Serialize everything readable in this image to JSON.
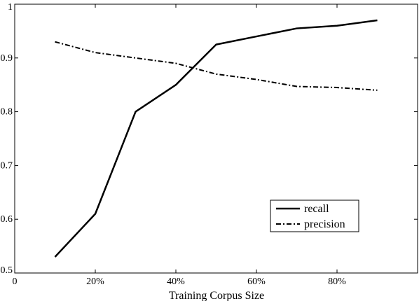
{
  "chart_data": {
    "type": "line",
    "title": "",
    "xlabel": "Training Corpus Size",
    "ylabel": "",
    "x": [
      10,
      20,
      30,
      40,
      50,
      60,
      70,
      80,
      90
    ],
    "xlim": [
      0,
      100
    ],
    "ylim": [
      0.5,
      1.0
    ],
    "x_ticks": [
      0,
      20,
      40,
      60,
      80
    ],
    "x_tick_labels": [
      "0",
      "20%",
      "40%",
      "60%",
      "80%"
    ],
    "y_ticks": [
      0.5,
      0.6,
      0.7,
      0.8,
      0.9,
      1.0
    ],
    "y_tick_labels": [
      "0.5",
      "0.6",
      "0.7",
      "0.8",
      "0.9",
      "1"
    ],
    "grid": false,
    "legend_position": "lower-right",
    "series": [
      {
        "name": "recall",
        "style": "solid",
        "values": [
          0.53,
          0.61,
          0.8,
          0.85,
          0.925,
          0.94,
          0.955,
          0.96,
          0.97
        ]
      },
      {
        "name": "precision",
        "style": "dashdot",
        "values": [
          0.93,
          0.91,
          0.9,
          0.89,
          0.87,
          0.86,
          0.847,
          0.845,
          0.84
        ]
      }
    ],
    "colors": {
      "line": "#000000",
      "background": "#ffffff"
    }
  }
}
